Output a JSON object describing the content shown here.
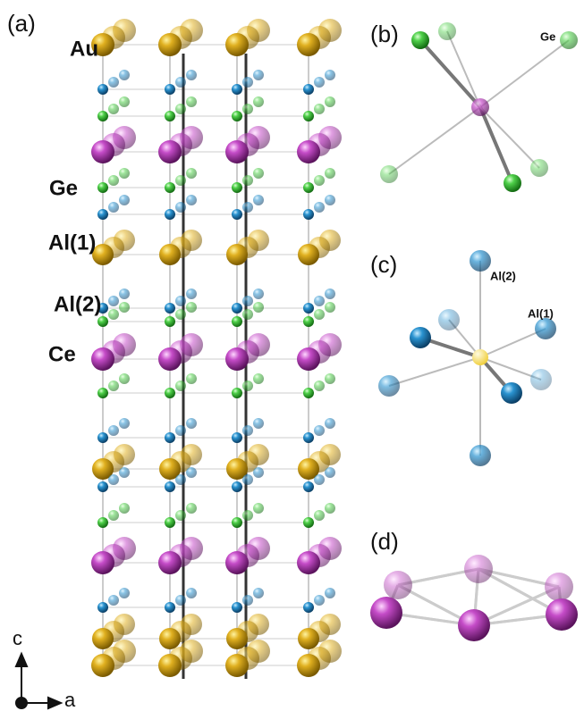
{
  "panels": {
    "a": {
      "label": "(a)",
      "atoms": [
        "Au",
        "Ge",
        "Al(1)",
        "Al(2)",
        "Ce"
      ],
      "axes": [
        "c",
        "a"
      ]
    },
    "b": {
      "label": "(b)",
      "atom": "Ge"
    },
    "c": {
      "label": "(c)",
      "atoms": [
        "Al(2)",
        "Al(1)"
      ]
    },
    "d": {
      "label": "(d)"
    }
  }
}
